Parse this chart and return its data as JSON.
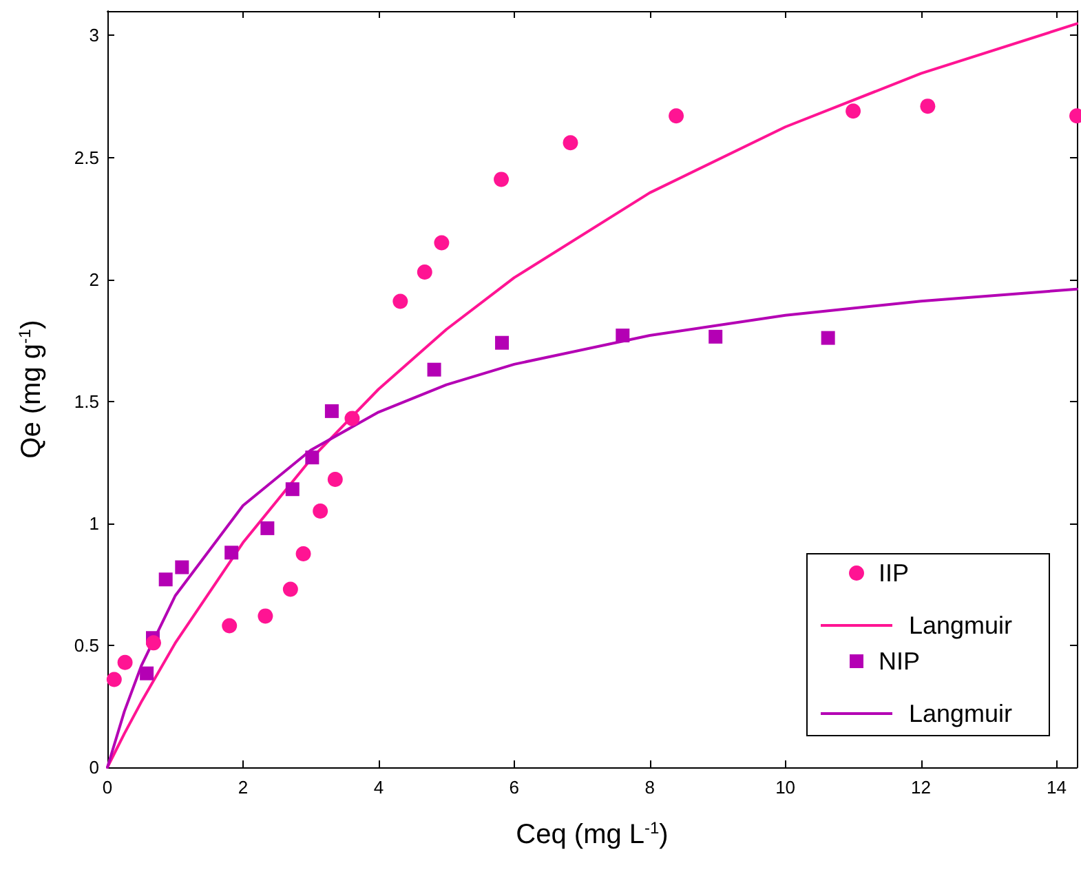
{
  "chart_data": {
    "type": "scatter",
    "xlabel": "Ceq (mg L$^{-1}$)",
    "ylabel": "Qe (mg g$^{-1}$)",
    "xlim": [
      0,
      14.3
    ],
    "ylim": [
      0,
      3.1
    ],
    "xticks": [
      0,
      2,
      4,
      6,
      8,
      10,
      12,
      14
    ],
    "yticks": [
      0,
      0.5,
      1,
      1.5,
      2,
      2.5,
      3
    ],
    "grid": false,
    "legend": "bottom right",
    "series": [
      {
        "name": "IIP",
        "marker": "circle",
        "color": "#ff1493",
        "x": [
          0.1,
          0.26,
          0.68,
          1.8,
          2.33,
          2.7,
          2.89,
          3.14,
          3.36,
          3.61,
          4.32,
          4.68,
          4.93,
          5.81,
          6.83,
          8.39,
          11.0,
          12.1,
          14.3
        ],
        "values": [
          0.36,
          0.43,
          0.51,
          0.58,
          0.62,
          0.73,
          0.875,
          1.05,
          1.18,
          1.43,
          1.91,
          2.03,
          2.15,
          2.41,
          2.56,
          2.67,
          2.69,
          2.71,
          2.67
        ]
      },
      {
        "name": "Langmuir",
        "type": "line",
        "marker": "none",
        "line_style": "solid",
        "color": "#ff1493",
        "x": [
          0,
          0.25,
          0.5,
          1,
          2,
          3,
          4,
          5,
          6,
          8,
          10,
          12,
          14.3
        ],
        "values": [
          0,
          0.138,
          0.268,
          0.509,
          0.921,
          1.263,
          1.55,
          1.795,
          2.007,
          2.355,
          2.625,
          2.844,
          3.048
        ]
      },
      {
        "name": "NIP",
        "marker": "square",
        "color": "#b400b4",
        "x": [
          0.58,
          0.67,
          0.86,
          1.1,
          1.83,
          2.36,
          2.73,
          3.02,
          3.31,
          4.82,
          5.82,
          7.6,
          8.97,
          10.63
        ],
        "values": [
          0.385,
          0.53,
          0.77,
          0.82,
          0.88,
          0.98,
          1.14,
          1.27,
          1.46,
          1.63,
          1.74,
          1.77,
          1.765,
          1.76
        ]
      },
      {
        "name": "Langmuir",
        "type": "line",
        "marker": "none",
        "line_style": "solid",
        "color": "#b400b4",
        "x": [
          0,
          0.25,
          0.5,
          1,
          2,
          3,
          4,
          5,
          6,
          8,
          10,
          12,
          14.3
        ],
        "values": [
          0,
          0.229,
          0.416,
          0.703,
          1.073,
          1.3,
          1.456,
          1.568,
          1.652,
          1.77,
          1.853,
          1.911,
          1.96
        ]
      }
    ]
  }
}
